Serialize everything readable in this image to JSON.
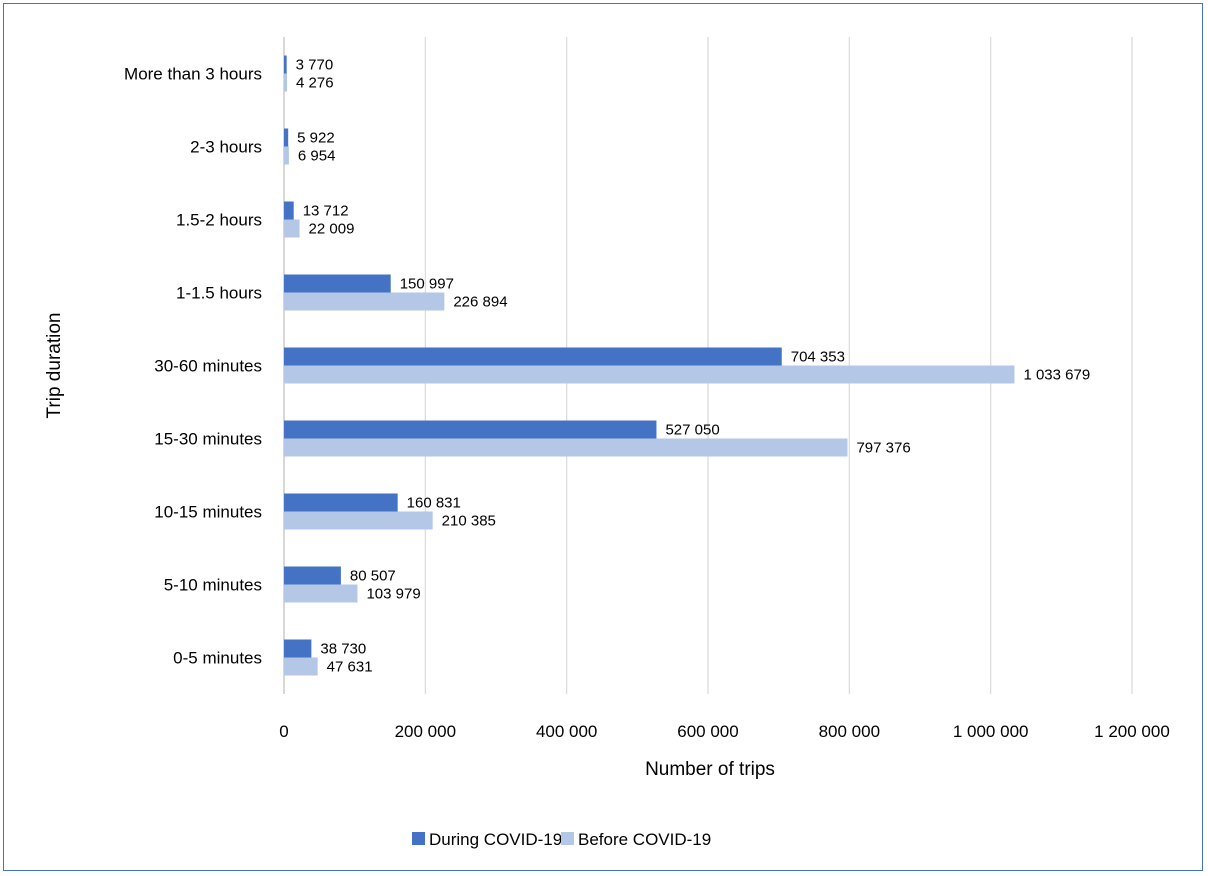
{
  "chart_data": {
    "type": "bar",
    "orientation": "horizontal",
    "xlabel": "Number of trips",
    "ylabel": "Trip duration",
    "xlim": [
      0,
      1200000
    ],
    "x_ticks": [
      0,
      200000,
      400000,
      600000,
      800000,
      1000000,
      1200000
    ],
    "x_tick_labels": [
      "0",
      "200 000",
      "400 000",
      "600 000",
      "800 000",
      "1 000 000",
      "1 200 000"
    ],
    "grid": "vertical",
    "legend_position": "bottom",
    "categories": [
      "More than 3 hours",
      "2-3 hours",
      "1.5-2 hours",
      "1-1.5 hours",
      "30-60 minutes",
      "15-30 minutes",
      "10-15 minutes",
      "5-10 minutes",
      "0-5 minutes"
    ],
    "series": [
      {
        "name": "During COVID-19",
        "color": "#4472c4",
        "values": [
          3770,
          5922,
          13712,
          150997,
          704353,
          527050,
          160831,
          80507,
          38730
        ],
        "labels": [
          "3 770",
          "5 922",
          "13 712",
          "150 997",
          "704 353",
          "527 050",
          "160 831",
          "80 507",
          "38 730"
        ]
      },
      {
        "name": "Before COVID-19",
        "color": "#b4c7e7",
        "values": [
          4276,
          6954,
          22009,
          226894,
          1033679,
          797376,
          210385,
          103979,
          47631
        ],
        "labels": [
          "4 276",
          "6 954",
          "22 009",
          "226 894",
          "1 033 679",
          "797 376",
          "210 385",
          "103 979",
          "47 631"
        ]
      }
    ]
  }
}
